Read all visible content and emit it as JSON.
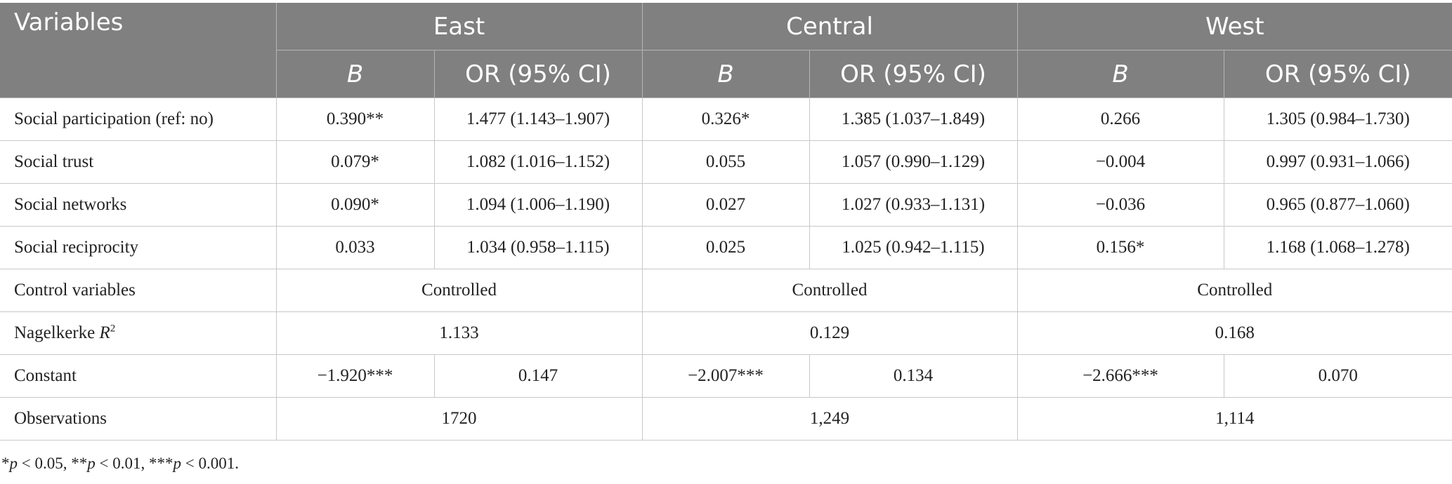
{
  "header": {
    "variables": "Variables",
    "regions": [
      "East",
      "Central",
      "West"
    ],
    "b_label": "B",
    "or_label": "OR (95% CI)"
  },
  "rows": [
    {
      "label": "Social participation (ref: no)",
      "cells": [
        "0.390**",
        "1.477 (1.143–1.907)",
        "0.326*",
        "1.385 (1.037–1.849)",
        "0.266",
        "1.305 (0.984–1.730)"
      ]
    },
    {
      "label": "Social trust",
      "cells": [
        "0.079*",
        "1.082 (1.016–1.152)",
        "0.055",
        "1.057 (0.990–1.129)",
        "−0.004",
        "0.997 (0.931–1.066)"
      ]
    },
    {
      "label": "Social networks",
      "cells": [
        "0.090*",
        "1.094 (1.006–1.190)",
        "0.027",
        "1.027 (0.933–1.131)",
        "−0.036",
        "0.965 (0.877–1.060)"
      ]
    },
    {
      "label": "Social reciprocity",
      "cells": [
        "0.033",
        "1.034 (0.958–1.115)",
        "0.025",
        "1.025 (0.942–1.115)",
        "0.156*",
        "1.168 (1.068–1.278)"
      ]
    }
  ],
  "control": {
    "label": "Control variables",
    "values": [
      "Controlled",
      "Controlled",
      "Controlled"
    ]
  },
  "nagelkerke": {
    "label_prefix": "Nagelkerke ",
    "label_var": "R",
    "label_sup": "2",
    "values": [
      "1.133",
      "0.129",
      "0.168"
    ]
  },
  "constant": {
    "label": "Constant",
    "cells": [
      "−1.920***",
      "0.147",
      "−2.007***",
      "0.134",
      "−2.666***",
      "0.070"
    ]
  },
  "observations": {
    "label": "Observations",
    "values": [
      "1720",
      "1,249",
      "1,114"
    ]
  },
  "footnote": {
    "p1_star": "*",
    "p1_var": "p",
    "p1_rest": " < 0.05, ",
    "p2_star": "**",
    "p2_var": "p",
    "p2_rest": " < 0.01, ",
    "p3_star": "***",
    "p3_var": "p",
    "p3_rest": " < 0.001."
  }
}
